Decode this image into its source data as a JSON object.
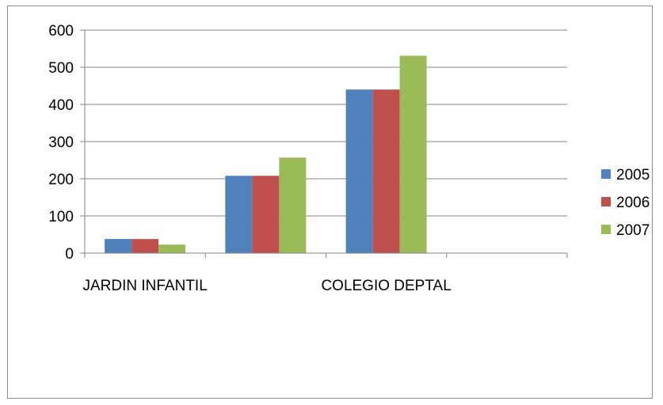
{
  "chart_data": {
    "type": "bar",
    "categories": [
      "JARDIN INFANTIL",
      "",
      "COLEGIO DEPTAL",
      ""
    ],
    "series": [
      {
        "name": "2005",
        "color": "#4f81bd",
        "values": [
          38,
          208,
          440,
          null
        ]
      },
      {
        "name": "2006",
        "color": "#c0504d",
        "values": [
          38,
          208,
          440,
          null
        ]
      },
      {
        "name": "2007",
        "color": "#9bbb59",
        "values": [
          23,
          257,
          531,
          null
        ]
      }
    ],
    "yticks": [
      "0",
      "100",
      "200",
      "300",
      "400",
      "500",
      "600"
    ],
    "ylim": [
      0,
      600
    ],
    "grid": true,
    "legend": "right"
  }
}
